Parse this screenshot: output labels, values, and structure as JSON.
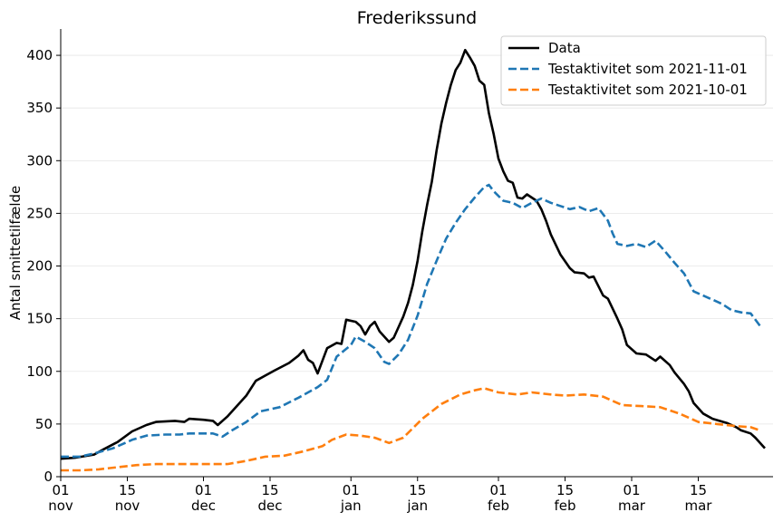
{
  "chart_data": {
    "type": "line",
    "title": "Frederikssund",
    "xlabel": "",
    "ylabel": "Antal smittetilfælde",
    "x_range": [
      "2021-11-01",
      "2022-03-28"
    ],
    "ylim": [
      0,
      425
    ],
    "y_ticks": [
      0,
      50,
      100,
      150,
      200,
      250,
      300,
      350,
      400
    ],
    "x_ticks": [
      {
        "date": "2021-11-01",
        "day": "01",
        "month": "nov"
      },
      {
        "date": "2021-11-15",
        "day": "15",
        "month": "nov"
      },
      {
        "date": "2021-12-01",
        "day": "01",
        "month": "dec"
      },
      {
        "date": "2021-12-15",
        "day": "15",
        "month": "dec"
      },
      {
        "date": "2022-01-01",
        "day": "01",
        "month": "jan"
      },
      {
        "date": "2022-01-15",
        "day": "15",
        "month": "jan"
      },
      {
        "date": "2022-02-01",
        "day": "01",
        "month": "feb"
      },
      {
        "date": "2022-02-15",
        "day": "15",
        "month": "feb"
      },
      {
        "date": "2022-03-01",
        "day": "01",
        "month": "mar"
      },
      {
        "date": "2022-03-15",
        "day": "15",
        "month": "mar"
      }
    ],
    "grid": "horizontal",
    "legend_position": "top-right",
    "series": [
      {
        "name": "Data",
        "color": "#000000",
        "style": "solid",
        "points": [
          [
            "2021-11-01",
            17
          ],
          [
            "2021-11-04",
            18
          ],
          [
            "2021-11-08",
            21
          ],
          [
            "2021-11-10",
            26
          ],
          [
            "2021-11-13",
            33
          ],
          [
            "2021-11-16",
            43
          ],
          [
            "2021-11-19",
            49
          ],
          [
            "2021-11-21",
            52
          ],
          [
            "2021-11-25",
            53
          ],
          [
            "2021-11-27",
            52
          ],
          [
            "2021-11-28",
            55
          ],
          [
            "2021-12-01",
            54
          ],
          [
            "2021-12-03",
            53
          ],
          [
            "2021-12-04",
            49
          ],
          [
            "2021-12-06",
            57
          ],
          [
            "2021-12-08",
            67
          ],
          [
            "2021-12-10",
            77
          ],
          [
            "2021-12-12",
            91
          ],
          [
            "2021-12-14",
            96
          ],
          [
            "2021-12-16",
            101
          ],
          [
            "2021-12-19",
            108
          ],
          [
            "2021-12-21",
            115
          ],
          [
            "2021-12-22",
            120
          ],
          [
            "2021-12-23",
            111
          ],
          [
            "2021-12-24",
            108
          ],
          [
            "2021-12-25",
            98
          ],
          [
            "2021-12-27",
            122
          ],
          [
            "2021-12-29",
            127
          ],
          [
            "2021-12-30",
            126
          ],
          [
            "2021-12-31",
            149
          ],
          [
            "2022-01-02",
            147
          ],
          [
            "2022-01-03",
            143
          ],
          [
            "2022-01-04",
            135
          ],
          [
            "2022-01-05",
            143
          ],
          [
            "2022-01-06",
            147
          ],
          [
            "2022-01-07",
            138
          ],
          [
            "2022-01-08",
            133
          ],
          [
            "2022-01-09",
            128
          ],
          [
            "2022-01-10",
            132
          ],
          [
            "2022-01-11",
            142
          ],
          [
            "2022-01-12",
            152
          ],
          [
            "2022-01-13",
            165
          ],
          [
            "2022-01-14",
            182
          ],
          [
            "2022-01-15",
            205
          ],
          [
            "2022-01-16",
            233
          ],
          [
            "2022-01-17",
            258
          ],
          [
            "2022-01-18",
            280
          ],
          [
            "2022-01-19",
            310
          ],
          [
            "2022-01-20",
            335
          ],
          [
            "2022-01-21",
            355
          ],
          [
            "2022-01-22",
            372
          ],
          [
            "2022-01-23",
            386
          ],
          [
            "2022-01-24",
            393
          ],
          [
            "2022-01-25",
            405
          ],
          [
            "2022-01-26",
            398
          ],
          [
            "2022-01-27",
            390
          ],
          [
            "2022-01-28",
            376
          ],
          [
            "2022-01-29",
            372
          ],
          [
            "2022-01-30",
            345
          ],
          [
            "2022-01-31",
            325
          ],
          [
            "2022-02-01",
            302
          ],
          [
            "2022-02-02",
            290
          ],
          [
            "2022-02-03",
            281
          ],
          [
            "2022-02-04",
            279
          ],
          [
            "2022-02-05",
            265
          ],
          [
            "2022-02-06",
            264
          ],
          [
            "2022-02-07",
            268
          ],
          [
            "2022-02-09",
            262
          ],
          [
            "2022-02-10",
            254
          ],
          [
            "2022-02-11",
            243
          ],
          [
            "2022-02-12",
            230
          ],
          [
            "2022-02-14",
            211
          ],
          [
            "2022-02-16",
            198
          ],
          [
            "2022-02-17",
            194
          ],
          [
            "2022-02-19",
            193
          ],
          [
            "2022-02-20",
            189
          ],
          [
            "2022-02-21",
            190
          ],
          [
            "2022-02-23",
            172
          ],
          [
            "2022-02-24",
            169
          ],
          [
            "2022-02-26",
            150
          ],
          [
            "2022-02-27",
            140
          ],
          [
            "2022-02-28",
            125
          ],
          [
            "2022-03-02",
            117
          ],
          [
            "2022-03-04",
            116
          ],
          [
            "2022-03-06",
            110
          ],
          [
            "2022-03-07",
            114
          ],
          [
            "2022-03-09",
            106
          ],
          [
            "2022-03-10",
            99
          ],
          [
            "2022-03-12",
            88
          ],
          [
            "2022-03-13",
            81
          ],
          [
            "2022-03-14",
            70
          ],
          [
            "2022-03-16",
            60
          ],
          [
            "2022-03-18",
            55
          ],
          [
            "2022-03-21",
            51
          ],
          [
            "2022-03-23",
            47
          ],
          [
            "2022-03-24",
            44
          ],
          [
            "2022-03-26",
            41
          ],
          [
            "2022-03-27",
            37
          ],
          [
            "2022-03-29",
            27
          ]
        ]
      },
      {
        "name": "Testaktivitet som 2021-11-01",
        "color": "#1f77b4",
        "style": "dashed",
        "points": [
          [
            "2021-11-01",
            19
          ],
          [
            "2021-11-05",
            19
          ],
          [
            "2021-11-08",
            22
          ],
          [
            "2021-11-12",
            27
          ],
          [
            "2021-11-16",
            35
          ],
          [
            "2021-11-19",
            39
          ],
          [
            "2021-11-23",
            40
          ],
          [
            "2021-11-26",
            40
          ],
          [
            "2021-11-28",
            41
          ],
          [
            "2021-12-03",
            41
          ],
          [
            "2021-12-05",
            38
          ],
          [
            "2021-12-07",
            44
          ],
          [
            "2021-12-10",
            52
          ],
          [
            "2021-12-13",
            62
          ],
          [
            "2021-12-17",
            66
          ],
          [
            "2021-12-21",
            75
          ],
          [
            "2021-12-25",
            85
          ],
          [
            "2021-12-27",
            92
          ],
          [
            "2021-12-29",
            114
          ],
          [
            "2022-01-01",
            125
          ],
          [
            "2022-01-02",
            133
          ],
          [
            "2022-01-04",
            128
          ],
          [
            "2022-01-06",
            122
          ],
          [
            "2022-01-08",
            109
          ],
          [
            "2022-01-09",
            107
          ],
          [
            "2022-01-11",
            116
          ],
          [
            "2022-01-13",
            130
          ],
          [
            "2022-01-15",
            153
          ],
          [
            "2022-01-17",
            183
          ],
          [
            "2022-01-19",
            205
          ],
          [
            "2022-01-21",
            226
          ],
          [
            "2022-01-23",
            241
          ],
          [
            "2022-01-25",
            254
          ],
          [
            "2022-01-27",
            265
          ],
          [
            "2022-01-29",
            275
          ],
          [
            "2022-01-30",
            277
          ],
          [
            "2022-01-31",
            271
          ],
          [
            "2022-02-02",
            262
          ],
          [
            "2022-02-04",
            260
          ],
          [
            "2022-02-06",
            255
          ],
          [
            "2022-02-08",
            260
          ],
          [
            "2022-02-10",
            264
          ],
          [
            "2022-02-12",
            260
          ],
          [
            "2022-02-14",
            257
          ],
          [
            "2022-02-16",
            254
          ],
          [
            "2022-02-18",
            256
          ],
          [
            "2022-02-20",
            252
          ],
          [
            "2022-02-22",
            255
          ],
          [
            "2022-02-24",
            243
          ],
          [
            "2022-02-25",
            231
          ],
          [
            "2022-02-26",
            221
          ],
          [
            "2022-02-28",
            219
          ],
          [
            "2022-03-02",
            221
          ],
          [
            "2022-03-04",
            218
          ],
          [
            "2022-03-06",
            224
          ],
          [
            "2022-03-08",
            214
          ],
          [
            "2022-03-10",
            203
          ],
          [
            "2022-03-12",
            193
          ],
          [
            "2022-03-14",
            176
          ],
          [
            "2022-03-16",
            172
          ],
          [
            "2022-03-18",
            168
          ],
          [
            "2022-03-20",
            164
          ],
          [
            "2022-03-22",
            158
          ],
          [
            "2022-03-24",
            156
          ],
          [
            "2022-03-26",
            155
          ],
          [
            "2022-03-28",
            143
          ]
        ]
      },
      {
        "name": "Testaktivitet som 2021-10-01",
        "color": "#ff7f0e",
        "style": "dashed",
        "points": [
          [
            "2021-11-01",
            6
          ],
          [
            "2021-11-05",
            6
          ],
          [
            "2021-11-09",
            7
          ],
          [
            "2021-11-13",
            9
          ],
          [
            "2021-11-17",
            11
          ],
          [
            "2021-11-21",
            12
          ],
          [
            "2021-11-25",
            12
          ],
          [
            "2021-11-29",
            12
          ],
          [
            "2021-12-03",
            12
          ],
          [
            "2021-12-06",
            12
          ],
          [
            "2021-12-10",
            15
          ],
          [
            "2021-12-14",
            19
          ],
          [
            "2021-12-18",
            20
          ],
          [
            "2021-12-22",
            24
          ],
          [
            "2021-12-26",
            29
          ],
          [
            "2021-12-28",
            35
          ],
          [
            "2021-12-31",
            40
          ],
          [
            "2022-01-03",
            39
          ],
          [
            "2022-01-06",
            37
          ],
          [
            "2022-01-09",
            32
          ],
          [
            "2022-01-12",
            37
          ],
          [
            "2022-01-16",
            55
          ],
          [
            "2022-01-20",
            69
          ],
          [
            "2022-01-24",
            78
          ],
          [
            "2022-01-27",
            82
          ],
          [
            "2022-01-29",
            84
          ],
          [
            "2022-02-01",
            80
          ],
          [
            "2022-02-05",
            78
          ],
          [
            "2022-02-08",
            80
          ],
          [
            "2022-02-12",
            78
          ],
          [
            "2022-02-15",
            77
          ],
          [
            "2022-02-19",
            78
          ],
          [
            "2022-02-23",
            76
          ],
          [
            "2022-02-27",
            68
          ],
          [
            "2022-03-03",
            67
          ],
          [
            "2022-03-07",
            66
          ],
          [
            "2022-03-11",
            60
          ],
          [
            "2022-03-15",
            52
          ],
          [
            "2022-03-19",
            50
          ],
          [
            "2022-03-23",
            48
          ],
          [
            "2022-03-26",
            47
          ],
          [
            "2022-03-28",
            44
          ]
        ]
      }
    ]
  }
}
